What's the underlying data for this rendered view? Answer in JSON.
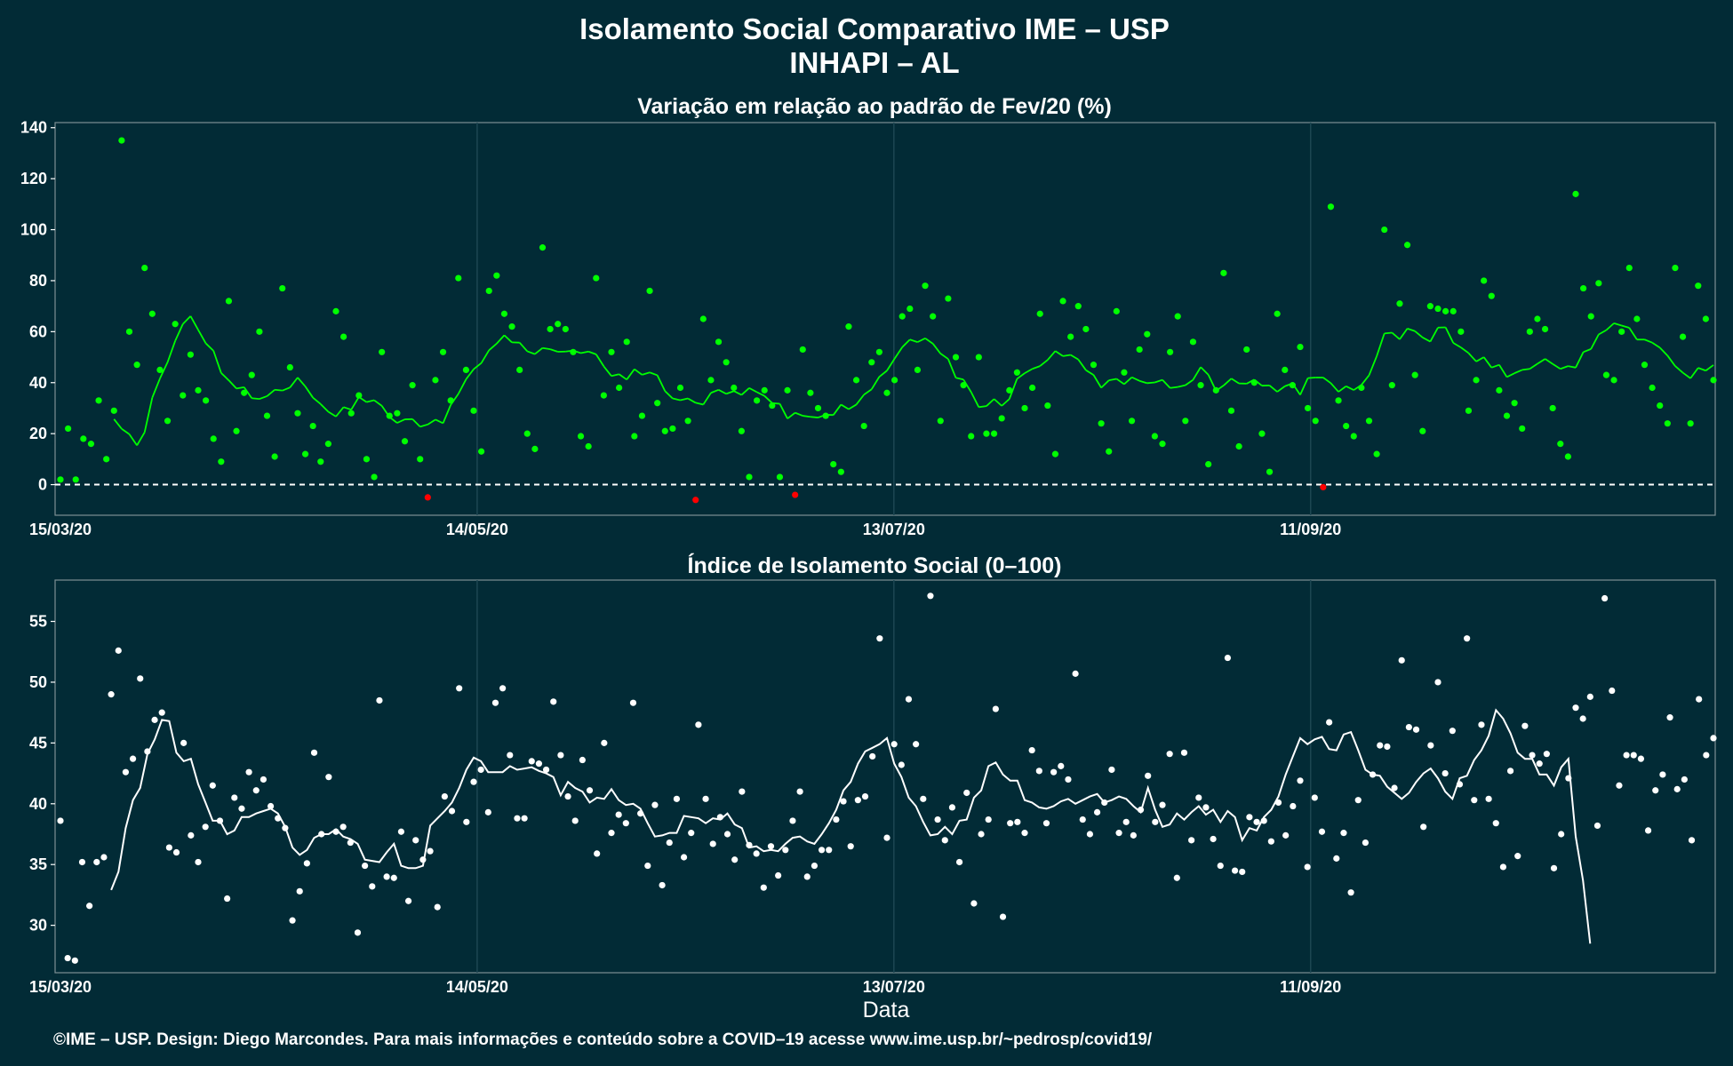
{
  "title": "Isolamento Social Comparativo IME – USP",
  "subtitle": "INHAPI – AL",
  "xlabel": "Data",
  "credit": "©IME – USP. Design: Diego Marcondes. Para mais informações e conteúdo sobre a COVID–19 acesse www.ime.usp.br/~pedrosp/covid19/",
  "colors": {
    "background": "#022b36",
    "positive": "#00ff00",
    "negative": "#ff0000",
    "index": "#ffffff"
  },
  "chart_data": [
    {
      "type": "scatter",
      "title": "Variação em relação ao padrão de Fev/20 (%)",
      "x_ticks": [
        "15/03/20",
        "14/05/20",
        "13/07/20",
        "11/09/20"
      ],
      "x_range": [
        "15/03/20",
        "08/11/20"
      ],
      "y_ticks": [
        0,
        20,
        40,
        60,
        80,
        100,
        120,
        140
      ],
      "ylim": [
        -12,
        142
      ],
      "reference_line": 0,
      "grid": true,
      "series": [
        {
          "role": "daily",
          "values": [
            2,
            22,
            2,
            18,
            16,
            33,
            10,
            29,
            135,
            60,
            47,
            85,
            67,
            45,
            25,
            63,
            35,
            51,
            37,
            33,
            18,
            9,
            72,
            21,
            36,
            43,
            60,
            27,
            11,
            77,
            46,
            28,
            12,
            23,
            9,
            16,
            68,
            58,
            28,
            35,
            10,
            3,
            52,
            27,
            28,
            17,
            39,
            10,
            -5,
            41,
            52,
            33,
            81,
            45,
            29,
            13,
            76,
            82,
            67,
            62,
            45,
            20,
            14,
            93,
            61,
            63,
            61,
            52,
            19,
            15,
            81,
            35,
            52,
            38,
            56,
            19,
            27,
            76,
            32,
            21,
            22,
            38,
            25,
            -6,
            65,
            41,
            56,
            48,
            38,
            21,
            3,
            33,
            37,
            31,
            3,
            37,
            -4,
            53,
            36,
            30,
            27,
            8,
            5,
            62,
            41,
            23,
            48,
            52,
            36,
            41,
            66,
            69,
            45,
            78,
            66,
            25,
            73,
            50,
            39,
            19,
            50,
            20,
            20,
            26,
            37,
            44,
            30,
            38,
            67,
            31,
            12,
            72,
            58,
            70,
            61,
            47,
            24,
            13,
            68,
            44,
            25,
            53,
            59,
            19,
            16,
            52,
            66,
            25,
            56,
            39,
            8,
            37,
            83,
            29,
            15,
            53,
            40,
            20,
            5,
            67,
            45,
            39,
            54,
            30,
            25,
            -1,
            109,
            33,
            23,
            19,
            38,
            25,
            12,
            100,
            39,
            71,
            94,
            43,
            21,
            70,
            69,
            68,
            68,
            60,
            29,
            41,
            80,
            74,
            37,
            27,
            32,
            22,
            60,
            65,
            61,
            30,
            16,
            11,
            114,
            77,
            66,
            79,
            43,
            41,
            60,
            85,
            65,
            47,
            38,
            31,
            24,
            85,
            58,
            24,
            78,
            65,
            41
          ]
        },
        {
          "role": "moving_average",
          "values": [
            null,
            null,
            null,
            null,
            null,
            null,
            null,
            25.7,
            21.9,
            19.8,
            15.4,
            20.5,
            34.1,
            41.6,
            48,
            56.4,
            63,
            66.1,
            60.7,
            55.4,
            52.5,
            43.8,
            40.9,
            37.7,
            38.2,
            33.9,
            33.6,
            34.7,
            37.2,
            36.9,
            38.1,
            42,
            38.5,
            34.1,
            31.6,
            28.6,
            26.7,
            30.4,
            29.4,
            34.4,
            32.4,
            33.1,
            30.9,
            26.5,
            24.2,
            25.6,
            25.7,
            22.7,
            23.6,
            25.5,
            24.1,
            31.3,
            35.6,
            41.3,
            45.3,
            47.7,
            52.7,
            55.3,
            58.6,
            55.8,
            55.7,
            52.3,
            51.2,
            53.6,
            53.1,
            52.1,
            52.2,
            52.6,
            51.6,
            52.2,
            51.1,
            46.4,
            42.6,
            43.3,
            41.2,
            45.3,
            43.1,
            44,
            42.9,
            36.7,
            33.8,
            33.1,
            33.8,
            32.1,
            31.4,
            36,
            37.2,
            35.6,
            36.7,
            35.2,
            37.9,
            36.3,
            34.8,
            32,
            31.7,
            25.9,
            28.2,
            27,
            26.6,
            26.3,
            27.4,
            27.3,
            31.4,
            29.6,
            31.4,
            35.3,
            37.4,
            42.3,
            44.7,
            49.4,
            53.9,
            56.9,
            55.9,
            57.4,
            55.3,
            51.4,
            49.3,
            41.9,
            41.2,
            36.3,
            30.4,
            30.8,
            33.6,
            30.9,
            33.6,
            41.5,
            43.7,
            45.4,
            46.5,
            48.9,
            52.4,
            50.4,
            50.9,
            49.1,
            44.9,
            43,
            38,
            40.9,
            41.5,
            39.4,
            42.1,
            40.7,
            39.8,
            40.1,
            41.1,
            37.9,
            38.3,
            39,
            41.1,
            46.1,
            43.1,
            36.8,
            38.9,
            41.6,
            39.7,
            39.6,
            41.2,
            38.8,
            38.9,
            36.4,
            38.6,
            39.7,
            35.2,
            41.8,
            42,
            42,
            39.8,
            36.4,
            38.6,
            37.1,
            39.1,
            42.9,
            50.4,
            59.3,
            59.6,
            57,
            61.2,
            60.2,
            57.7,
            56.1,
            61.6,
            61.7,
            55.6,
            53.8,
            51.6,
            48.3,
            50,
            45.9,
            47,
            42.2,
            43.7,
            45,
            45.4,
            47.4,
            49.3,
            47.3,
            45.4,
            46.5,
            45.9,
            52,
            53.2,
            58.9,
            60.6,
            63.3,
            62.4,
            61.5,
            56.9,
            56.9,
            55.7,
            53.7,
            50.6,
            46.5,
            43.9,
            41.7,
            45.8,
            44.7,
            46.9,
            49.6,
            53.1
          ]
        }
      ]
    },
    {
      "type": "scatter",
      "title": "Índice de Isolamento Social (0–100)",
      "x_ticks": [
        "15/03/20",
        "14/05/20",
        "13/07/20",
        "11/09/20"
      ],
      "x_range": [
        "15/03/20",
        "08/11/20"
      ],
      "y_ticks": [
        30,
        35,
        40,
        45,
        50,
        55
      ],
      "ylim": [
        26.1,
        58.4
      ],
      "grid": true,
      "series": [
        {
          "role": "daily",
          "values": [
            38.6,
            27.3,
            27.1,
            35.2,
            31.6,
            35.2,
            35.6,
            49,
            52.6,
            42.6,
            43.7,
            50.3,
            44.3,
            46.9,
            47.5,
            36.4,
            36,
            45,
            37.4,
            35.2,
            38.1,
            41.5,
            38.6,
            32.2,
            40.5,
            39.6,
            42.6,
            41.1,
            42,
            39.8,
            38.8,
            38,
            30.4,
            32.8,
            35.1,
            44.2,
            37.5,
            42.2,
            37.7,
            38.1,
            36.8,
            29.4,
            34.9,
            33.2,
            48.5,
            34,
            33.9,
            37.7,
            32,
            37,
            35.4,
            36.1,
            31.5,
            40.6,
            39.4,
            49.5,
            38.5,
            41.8,
            42.8,
            39.3,
            48.3,
            49.5,
            44,
            38.8,
            38.8,
            43.5,
            43.3,
            42.8,
            48.4,
            44,
            40.6,
            38.6,
            43.6,
            41.1,
            35.9,
            45,
            37.6,
            39.1,
            38.4,
            48.3,
            39.2,
            34.9,
            39.9,
            33.3,
            36.8,
            40.4,
            35.6,
            37.6,
            46.5,
            40.4,
            36.7,
            38.9,
            37.5,
            35.4,
            41,
            36.6,
            35.9,
            33.1,
            36.5,
            34.1,
            36.2,
            38.6,
            41,
            34,
            34.9,
            36.2,
            36.2,
            38.7,
            40.2,
            36.5,
            40.3,
            40.6,
            43.9,
            53.6,
            37.2,
            44.9,
            43.2,
            48.6,
            44.9,
            40.4,
            57.1,
            38.7,
            37,
            39.7,
            35.2,
            40.9,
            31.8,
            37.5,
            38.7,
            47.8,
            30.7,
            38.4,
            38.5,
            37.6,
            44.4,
            42.7,
            38.4,
            42.6,
            43.1,
            42,
            50.7,
            38.7,
            37.5,
            39.3,
            40.1,
            42.8,
            37.6,
            38.5,
            37.4,
            39.5,
            42.3,
            38.5,
            39.9,
            44.1,
            33.9,
            44.2,
            37,
            40.5,
            39.7,
            37.1,
            34.9,
            52,
            34.5,
            34.4,
            38.9,
            38.5,
            38.6,
            36.9,
            40.1,
            37.4,
            39.8,
            41.9,
            34.8,
            40.5,
            37.7,
            46.7,
            35.5,
            37.6,
            32.7,
            40.3,
            36.8,
            42.4,
            44.8,
            44.7,
            41.3,
            51.8,
            46.3,
            46.1,
            38.1,
            44.8,
            50,
            42.5,
            46,
            41.6,
            53.6,
            40.3,
            46.5,
            40.4,
            38.4,
            34.8,
            42.7,
            35.7,
            46.4,
            44,
            43.3,
            44.1,
            34.7,
            37.5,
            42.1,
            47.9,
            47,
            48.8,
            38.2,
            56.9,
            49.3,
            41.5,
            44,
            44,
            43.7,
            37.8,
            41.1,
            42.4,
            47.1,
            41.2,
            42,
            37,
            48.6,
            44,
            45.4
          ]
        },
        {
          "role": "moving_average",
          "values": [
            null,
            null,
            null,
            null,
            null,
            null,
            null,
            32.9,
            34.4,
            38,
            40.3,
            41.3,
            44.1,
            45.3,
            46.9,
            46.8,
            44.2,
            43.5,
            43.7,
            41.6,
            40.1,
            38.6,
            38.6,
            37.5,
            37.8,
            38.9,
            38.9,
            39.2,
            39.4,
            39.6,
            39.2,
            38.1,
            36.4,
            35.8,
            36.2,
            37.2,
            37.5,
            37.5,
            37.9,
            37.3,
            37.1,
            36.7,
            35.4,
            35.3,
            35.2,
            36,
            36.7,
            34.9,
            34.7,
            34.7,
            34.9,
            38.2,
            38.8,
            39.4,
            40.1,
            41.3,
            42.8,
            43.8,
            43.5,
            42.6,
            42.6,
            42.6,
            43.1,
            42.8,
            42.9,
            43,
            42.7,
            42.5,
            42.2,
            40.7,
            41.8,
            41.3,
            41,
            40.1,
            40.5,
            40.4,
            41.2,
            40.3,
            39.9,
            40,
            39.6,
            38.4,
            37.3,
            37.4,
            37.6,
            37.6,
            39,
            38.9,
            38.8,
            38.4,
            38.8,
            38.7,
            39.2,
            38.3,
            38,
            36.4,
            36.5,
            36.1,
            36.2,
            36.1,
            36.7,
            37.2,
            37.3,
            36.9,
            36.7,
            37.5,
            38.4,
            39.5,
            41.1,
            41.8,
            43.3,
            44.3,
            44.6,
            44.9,
            45.4,
            43.3,
            42.2,
            40.5,
            39.8,
            38.5,
            37.4,
            37.5,
            38.1,
            37.5,
            38.6,
            38.7,
            40.5,
            41.1,
            43.1,
            43.4,
            42.4,
            41.9,
            41.9,
            40.3,
            40.1,
            39.7,
            39.6,
            39.8,
            40.2,
            40.4,
            40,
            40.3,
            40.6,
            40.8,
            40.1,
            40.3,
            40.6,
            40.4,
            39.8,
            39.3,
            41.3,
            39.5,
            38.1,
            38.3,
            39.2,
            38.7,
            39.3,
            39.8,
            39.1,
            39.5,
            38.5,
            39.4,
            38.9,
            37,
            38,
            37.8,
            38.9,
            39.5,
            40.6,
            42.4,
            43.9,
            45.4,
            44.9,
            45.3,
            45.5,
            44.5,
            44.4,
            45.7,
            45.9,
            44.4,
            42.8,
            42.4,
            42.3,
            41.4,
            40.9,
            40.4,
            40.9,
            41.8,
            42.5,
            42.9,
            42.1,
            41,
            40.4,
            42.1,
            42.3,
            43.6,
            44.4,
            45.6,
            47.7,
            47,
            45.8,
            44.2,
            43.7,
            43.7,
            42.4,
            42.4,
            41.5,
            43,
            43.7,
            37.3,
            33.7,
            28.5
          ]
        }
      ]
    }
  ]
}
